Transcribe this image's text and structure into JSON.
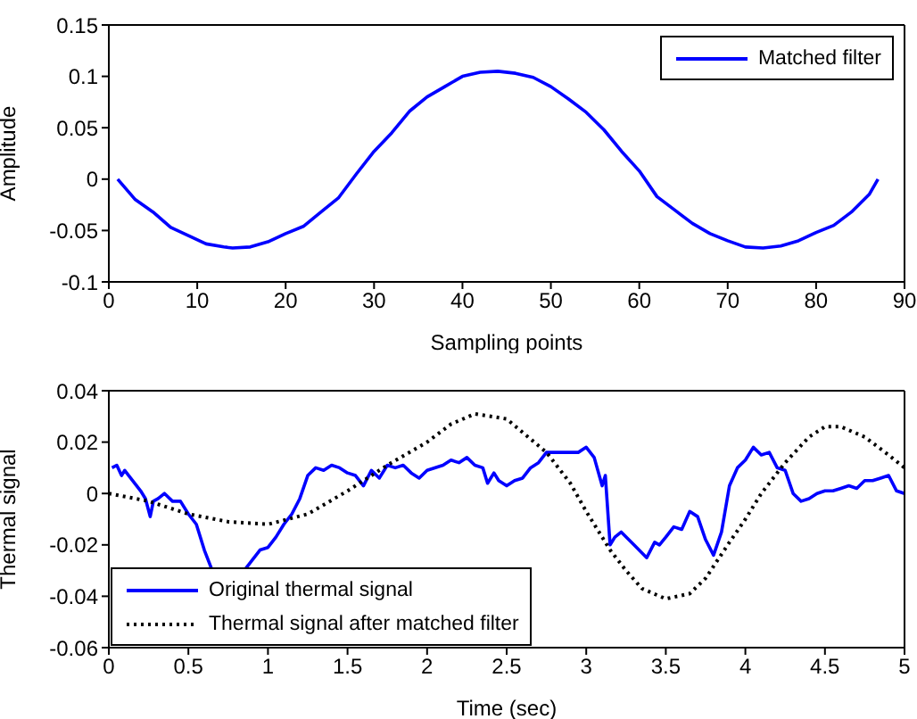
{
  "chart_data": [
    {
      "type": "line",
      "xlabel": "Sampling points",
      "ylabel": "Amplitude",
      "xlim": [
        0,
        90
      ],
      "xticks": [
        0,
        10,
        20,
        30,
        40,
        50,
        60,
        70,
        80,
        90
      ],
      "ylim": [
        -0.1,
        0.15
      ],
      "yticks": [
        -0.1,
        -0.05,
        0,
        0.05,
        0.1,
        0.15
      ],
      "legend": "top right",
      "marker": "none",
      "series": [
        {
          "name": "Matched filter",
          "color": "#0000ff",
          "line_style": "solid",
          "x": [
            1,
            3,
            5,
            7,
            9,
            11,
            13,
            14,
            16,
            18,
            20,
            22,
            24,
            26,
            28,
            30,
            32,
            34,
            36,
            38,
            40,
            42,
            44,
            46,
            48,
            50,
            52,
            54,
            56,
            58,
            60,
            62,
            64,
            66,
            68,
            70,
            72,
            74,
            76,
            78,
            80,
            82,
            84,
            86,
            87
          ],
          "values": [
            0,
            -0.02,
            -0.032,
            -0.047,
            -0.055,
            -0.063,
            -0.066,
            -0.067,
            -0.066,
            -0.061,
            -0.053,
            -0.046,
            -0.032,
            -0.018,
            0.005,
            0.027,
            0.045,
            0.066,
            0.08,
            0.09,
            0.1,
            0.104,
            0.105,
            0.103,
            0.099,
            0.09,
            0.078,
            0.065,
            0.048,
            0.027,
            0.008,
            -0.017,
            -0.03,
            -0.043,
            -0.053,
            -0.06,
            -0.066,
            -0.067,
            -0.065,
            -0.06,
            -0.052,
            -0.045,
            -0.032,
            -0.015,
            0
          ]
        }
      ]
    },
    {
      "type": "line",
      "xlabel": "Time (sec)",
      "ylabel": "Thermal signal",
      "xlim": [
        0,
        5
      ],
      "xticks": [
        0,
        0.5,
        1,
        1.5,
        2,
        2.5,
        3,
        3.5,
        4,
        4.5,
        5
      ],
      "ylim": [
        -0.06,
        0.04
      ],
      "yticks": [
        -0.06,
        -0.04,
        -0.02,
        0,
        0.02,
        0.04
      ],
      "legend": "bottom left",
      "marker": "none",
      "series": [
        {
          "name": "Original thermal signal",
          "color": "#0000ff",
          "line_style": "solid",
          "x": [
            0.02,
            0.05,
            0.08,
            0.1,
            0.15,
            0.2,
            0.23,
            0.26,
            0.28,
            0.31,
            0.35,
            0.4,
            0.45,
            0.5,
            0.55,
            0.6,
            0.65,
            0.7,
            0.75,
            0.8,
            0.85,
            0.9,
            0.95,
            1.0,
            1.05,
            1.1,
            1.15,
            1.2,
            1.25,
            1.3,
            1.35,
            1.4,
            1.45,
            1.5,
            1.55,
            1.6,
            1.65,
            1.7,
            1.75,
            1.8,
            1.85,
            1.9,
            1.95,
            2.0,
            2.1,
            2.15,
            2.2,
            2.25,
            2.3,
            2.35,
            2.38,
            2.42,
            2.45,
            2.5,
            2.55,
            2.6,
            2.65,
            2.7,
            2.75,
            2.85,
            2.95,
            3.0,
            3.05,
            3.1,
            3.12,
            3.15,
            3.18,
            3.22,
            3.3,
            3.38,
            3.43,
            3.46,
            3.5,
            3.55,
            3.6,
            3.65,
            3.7,
            3.75,
            3.8,
            3.85,
            3.9,
            3.95,
            4.0,
            4.05,
            4.1,
            4.15,
            4.2,
            4.25,
            4.3,
            4.35,
            4.4,
            4.45,
            4.5,
            4.55,
            4.6,
            4.65,
            4.7,
            4.75,
            4.8,
            4.85,
            4.9,
            4.95,
            5.0
          ],
          "values": [
            0.01,
            0.011,
            0.007,
            0.009,
            0.005,
            0.001,
            -0.002,
            -0.009,
            -0.003,
            -0.002,
            0,
            -0.003,
            -0.003,
            -0.008,
            -0.012,
            -0.022,
            -0.03,
            null,
            null,
            null,
            -0.03,
            -0.026,
            -0.022,
            -0.021,
            -0.017,
            -0.012,
            -0.008,
            -0.002,
            0.007,
            0.01,
            0.009,
            0.011,
            0.01,
            0.008,
            0.007,
            0.003,
            0.009,
            0.006,
            0.011,
            0.01,
            0.011,
            0.008,
            0.006,
            0.009,
            0.011,
            0.013,
            0.012,
            0.014,
            0.011,
            0.01,
            0.004,
            0.008,
            0.005,
            0.003,
            0.005,
            0.006,
            0.01,
            0.012,
            0.016,
            0.016,
            0.016,
            0.018,
            0.014,
            0.003,
            0.007,
            -0.02,
            -0.017,
            -0.015,
            -0.02,
            -0.025,
            -0.019,
            -0.02,
            -0.017,
            -0.013,
            -0.014,
            -0.007,
            -0.009,
            -0.018,
            -0.024,
            -0.015,
            0.003,
            0.01,
            0.013,
            0.018,
            0.015,
            0.016,
            0.01,
            0.009,
            0,
            -0.003,
            -0.002,
            0,
            0.001,
            0.001,
            0.002,
            0.003,
            0.002,
            0.005,
            0.005,
            0.006,
            0.007,
            0.001,
            0
          ]
        },
        {
          "name": "Thermal signal after matched filter",
          "color": "#000000",
          "line_style": "dotted",
          "x": [
            0,
            0.25,
            0.5,
            0.75,
            1,
            1.25,
            1.5,
            1.75,
            2.0,
            2.15,
            2.3,
            2.5,
            2.75,
            2.9,
            3.0,
            3.15,
            3.25,
            3.35,
            3.5,
            3.65,
            3.75,
            3.9,
            4.0,
            4.1,
            4.25,
            4.4,
            4.5,
            4.6,
            4.75,
            4.9,
            5
          ],
          "values": [
            0,
            -0.003,
            -0.008,
            -0.011,
            -0.012,
            -0.008,
            0.001,
            0.011,
            0.02,
            0.027,
            0.031,
            0.029,
            0.016,
            0.004,
            -0.007,
            -0.022,
            -0.03,
            -0.037,
            -0.041,
            -0.039,
            -0.033,
            -0.019,
            -0.01,
            0,
            0.012,
            0.022,
            0.026,
            0.026,
            0.022,
            0.015,
            0.01
          ]
        }
      ]
    }
  ]
}
